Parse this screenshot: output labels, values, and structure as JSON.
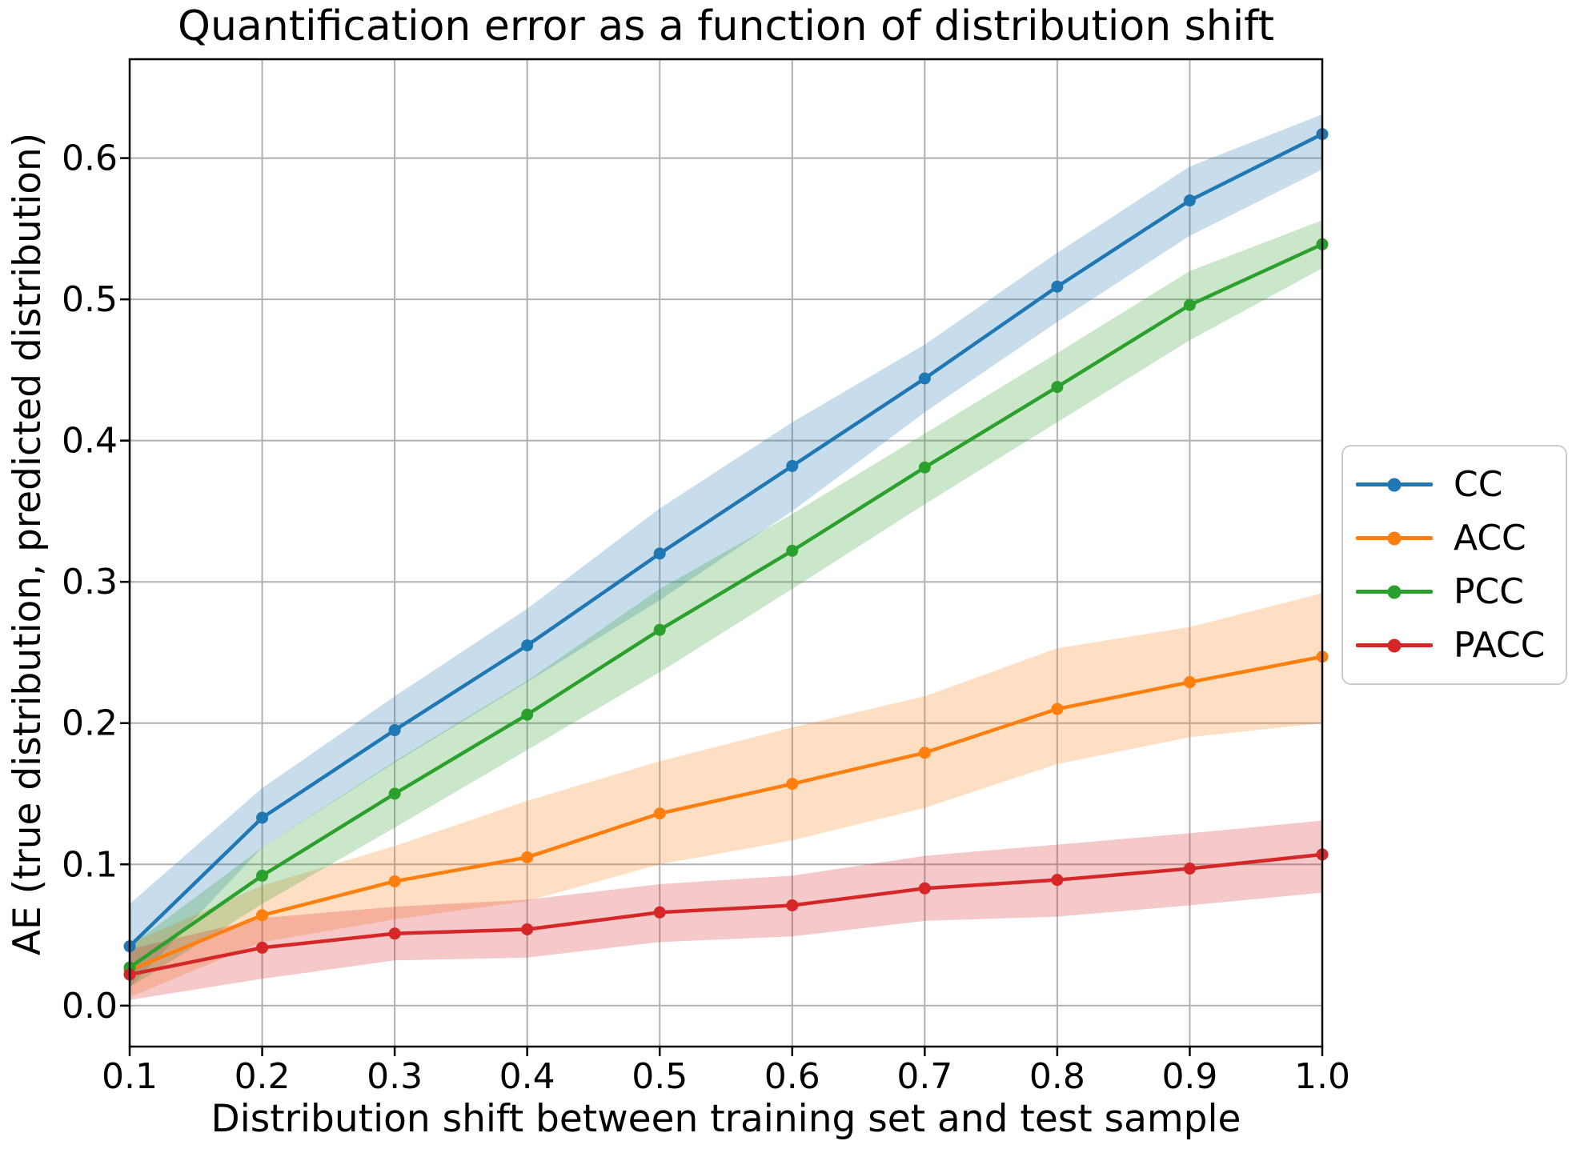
{
  "figure": {
    "title": "Quantification error as a function of distribution shift",
    "xlabel": "Distribution shift between training set and test sample",
    "ylabel": "AE (true distribution, predicted distribution)"
  },
  "chart_data": {
    "type": "line",
    "title": "Quantification error as a function of distribution shift",
    "xlabel": "Distribution shift between training set and test sample",
    "ylabel": "AE (true distribution, predicted distribution)",
    "x": [
      0.1,
      0.2,
      0.3,
      0.4,
      0.5,
      0.6,
      0.7,
      0.8,
      0.9,
      1.0
    ],
    "series": [
      {
        "name": "CC",
        "color": "#1f77b4",
        "values": [
          0.042,
          0.133,
          0.195,
          0.255,
          0.32,
          0.382,
          0.444,
          0.509,
          0.57,
          0.617
        ],
        "band_low": [
          0.013,
          0.112,
          0.172,
          0.229,
          0.287,
          0.35,
          0.42,
          0.484,
          0.545,
          0.592
        ],
        "band_high": [
          0.072,
          0.154,
          0.219,
          0.281,
          0.352,
          0.413,
          0.468,
          0.533,
          0.594,
          0.631
        ]
      },
      {
        "name": "ACC",
        "color": "#ff7f0e",
        "values": [
          0.025,
          0.064,
          0.088,
          0.105,
          0.136,
          0.157,
          0.179,
          0.21,
          0.229,
          0.247
        ],
        "band_low": [
          0.006,
          0.045,
          0.061,
          0.074,
          0.1,
          0.117,
          0.14,
          0.171,
          0.19,
          0.2
        ],
        "band_high": [
          0.044,
          0.085,
          0.113,
          0.145,
          0.173,
          0.197,
          0.219,
          0.253,
          0.268,
          0.292
        ]
      },
      {
        "name": "PCC",
        "color": "#2ca02c",
        "values": [
          0.027,
          0.092,
          0.15,
          0.206,
          0.266,
          0.322,
          0.381,
          0.438,
          0.496,
          0.539
        ],
        "band_low": [
          0.013,
          0.072,
          0.126,
          0.181,
          0.236,
          0.295,
          0.355,
          0.413,
          0.471,
          0.522
        ],
        "band_high": [
          0.042,
          0.112,
          0.173,
          0.23,
          0.295,
          0.348,
          0.405,
          0.462,
          0.52,
          0.556
        ]
      },
      {
        "name": "PACC",
        "color": "#d62728",
        "values": [
          0.022,
          0.041,
          0.051,
          0.054,
          0.066,
          0.071,
          0.083,
          0.089,
          0.097,
          0.107
        ],
        "band_low": [
          0.004,
          0.019,
          0.032,
          0.034,
          0.045,
          0.049,
          0.06,
          0.063,
          0.071,
          0.08
        ],
        "band_high": [
          0.04,
          0.062,
          0.07,
          0.075,
          0.086,
          0.092,
          0.106,
          0.114,
          0.122,
          0.131
        ]
      }
    ],
    "xlim": [
      0.1,
      1.0
    ],
    "ylim": [
      -0.029,
      0.67
    ],
    "xticks": [
      0.1,
      0.2,
      0.3,
      0.4,
      0.5,
      0.6,
      0.7,
      0.8,
      0.9,
      1.0
    ],
    "yticks": [
      0.0,
      0.1,
      0.2,
      0.3,
      0.4,
      0.5,
      0.6
    ],
    "xtick_labels": [
      "0.1",
      "0.2",
      "0.3",
      "0.4",
      "0.5",
      "0.6",
      "0.7",
      "0.8",
      "0.9",
      "1.0"
    ],
    "ytick_labels": [
      "0.0",
      "0.1",
      "0.2",
      "0.3",
      "0.4",
      "0.5",
      "0.6"
    ],
    "grid": true,
    "grid_color": "#b0b0b0",
    "band_alpha": 0.25,
    "marker": "circle",
    "legend_position": "right",
    "legend_labels": [
      "CC",
      "ACC",
      "PCC",
      "PACC"
    ]
  }
}
